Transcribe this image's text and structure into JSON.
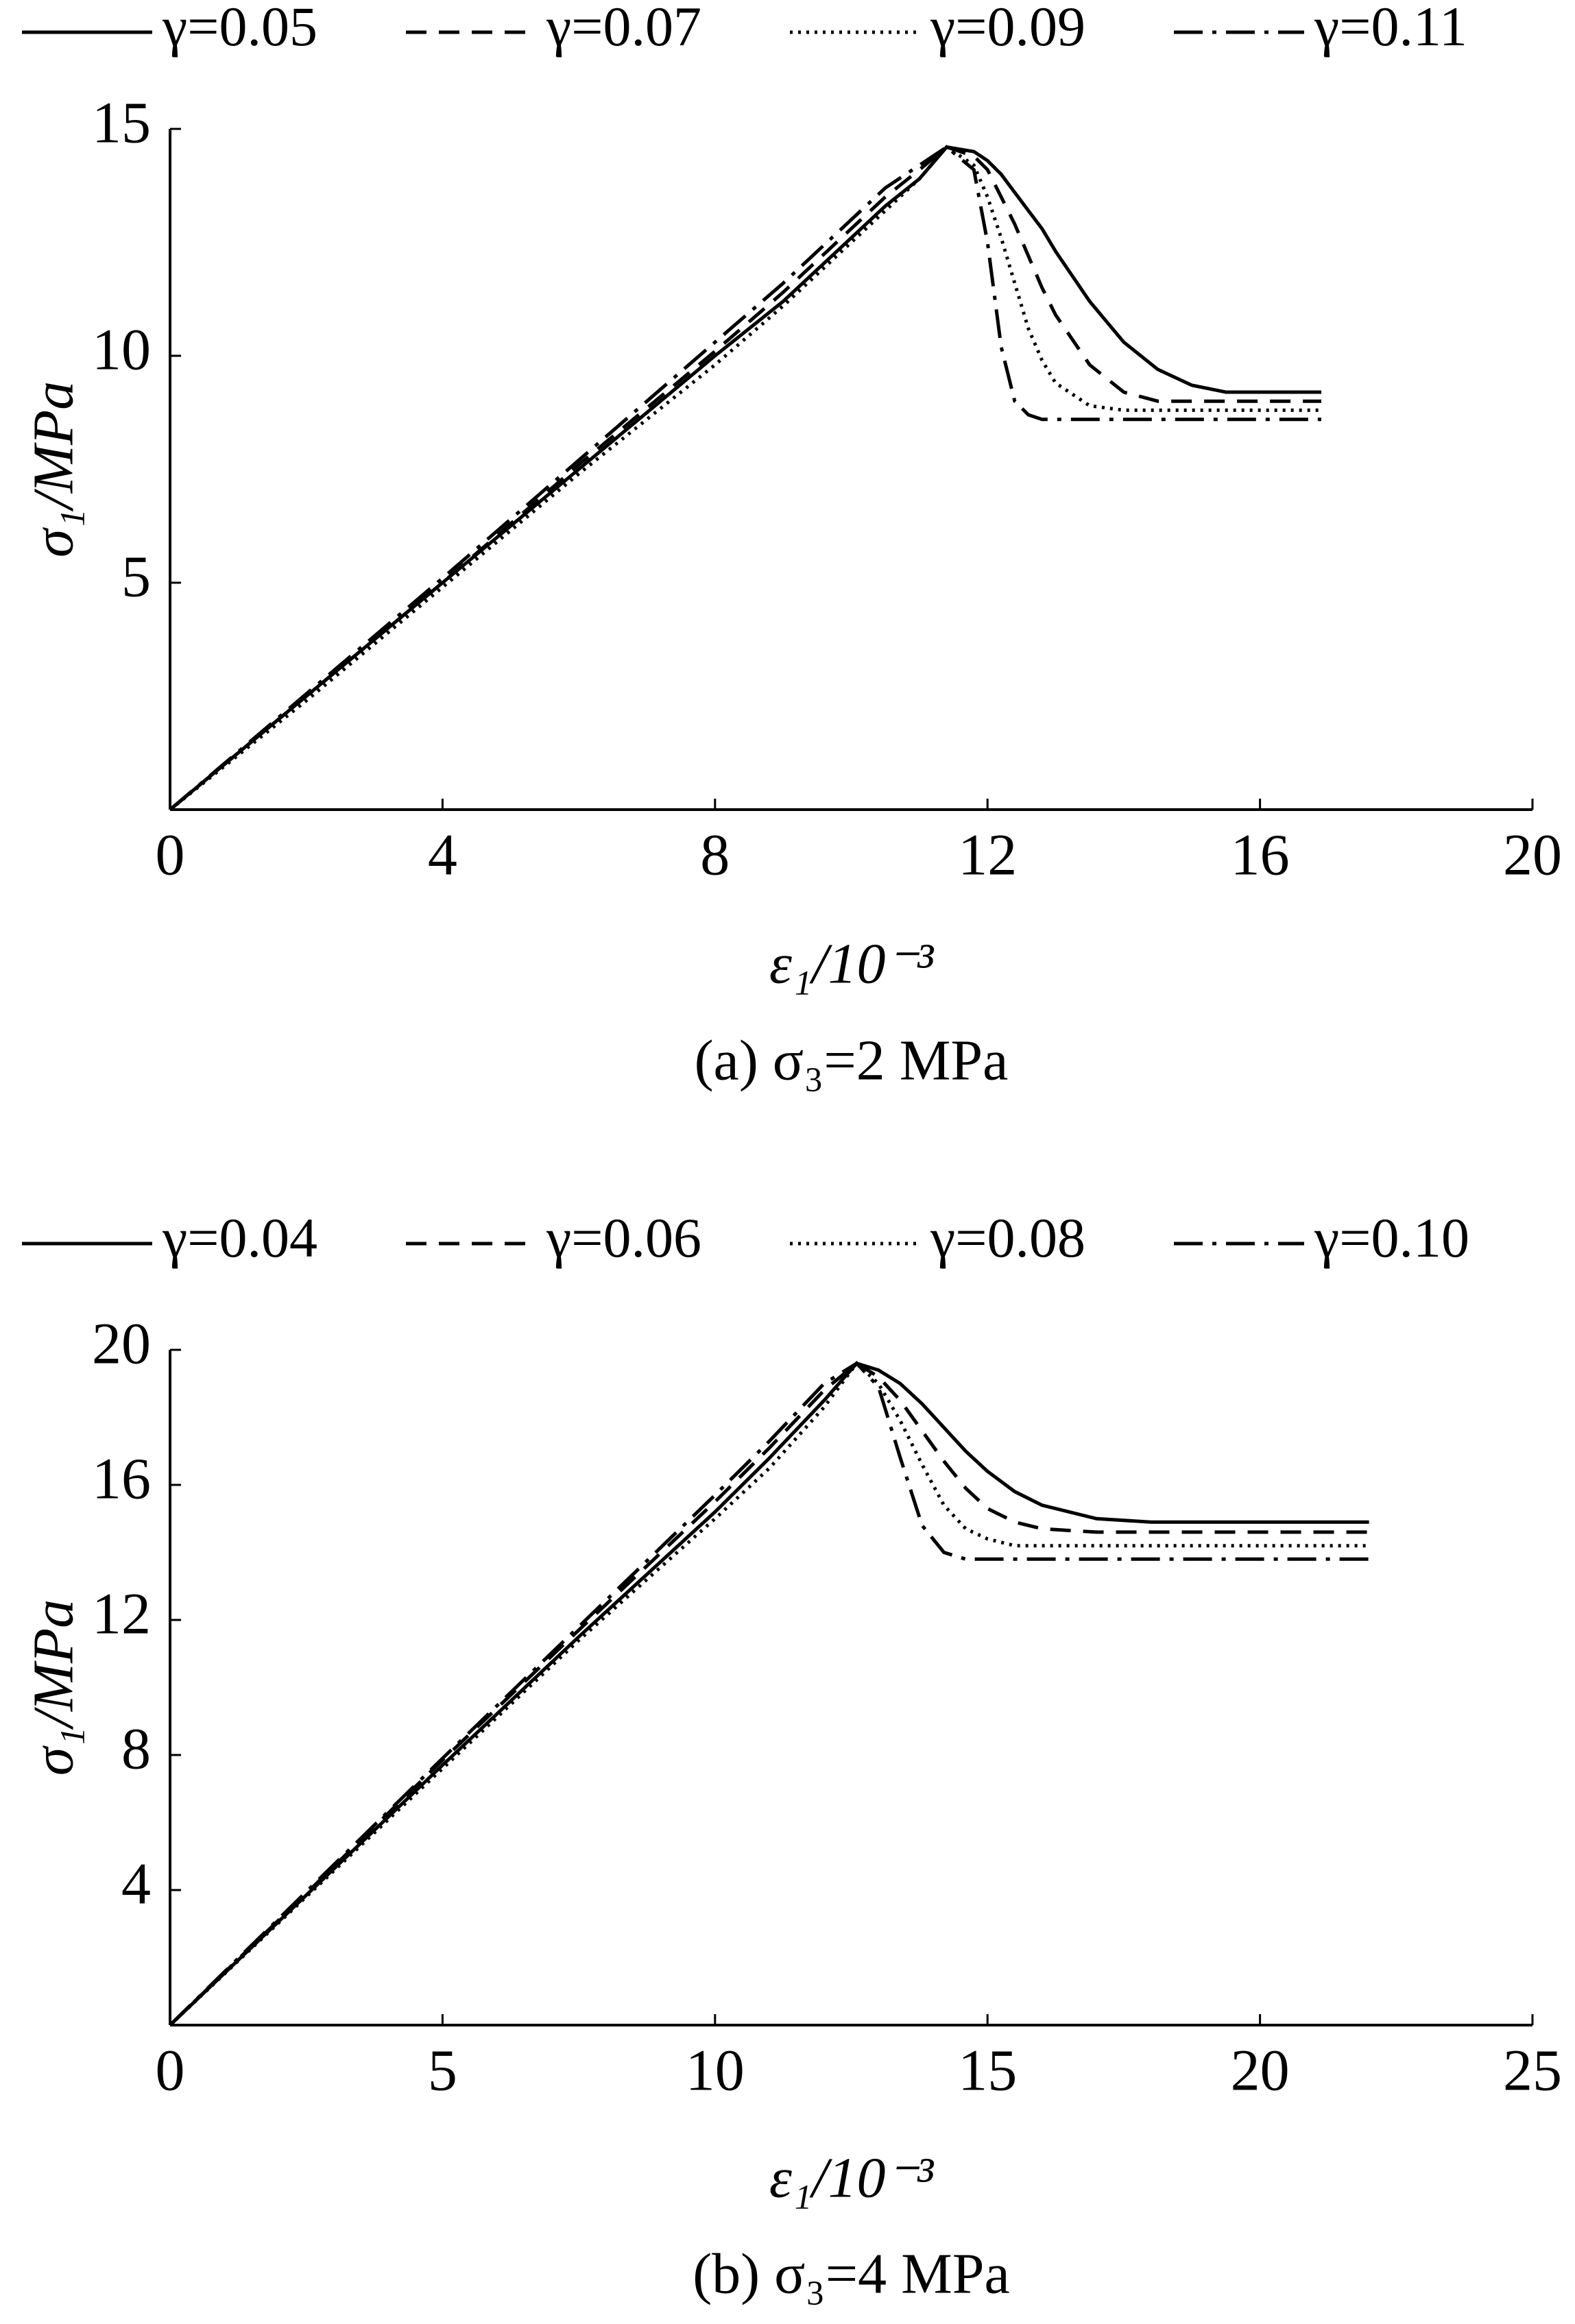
{
  "chart_data": [
    {
      "type": "line",
      "caption": "(a)  σ₃=2 MPa",
      "xlabel": "ε₁/10⁻³",
      "ylabel": "σ₁/MPa",
      "xlim": [
        0,
        20
      ],
      "xticks": [
        0,
        4,
        8,
        12,
        16,
        20
      ],
      "ylim": [
        0,
        15
      ],
      "yticks": [
        5,
        10,
        15
      ],
      "grid": false,
      "x": [
        0,
        2,
        4,
        6,
        8,
        9,
        10,
        10.5,
        11,
        11.4,
        11.8,
        12,
        12.2,
        12.4,
        12.6,
        12.8,
        13,
        13.5,
        14,
        14.5,
        15,
        15.5,
        16,
        16.9
      ],
      "series": [
        {
          "name": "γ=0.05",
          "color": "#000000",
          "dash": "solid",
          "values": [
            0,
            2.5,
            5.0,
            7.5,
            10.0,
            11.2,
            12.6,
            13.3,
            13.9,
            14.6,
            14.5,
            14.3,
            14.0,
            13.6,
            13.2,
            12.8,
            12.3,
            11.2,
            10.3,
            9.7,
            9.35,
            9.2,
            9.2,
            9.2
          ]
        },
        {
          "name": "γ=0.07",
          "color": "#000000",
          "dash": "dashed",
          "values": [
            0,
            2.5,
            5.0,
            7.6,
            10.1,
            11.4,
            12.8,
            13.5,
            14.1,
            14.6,
            14.4,
            14.1,
            13.5,
            12.9,
            12.2,
            11.5,
            10.9,
            9.8,
            9.2,
            9.0,
            9.0,
            9.0,
            9.0,
            9.0
          ]
        },
        {
          "name": "γ=0.09",
          "color": "#000000",
          "dash": "dotted",
          "values": [
            0,
            2.4,
            4.9,
            7.4,
            9.8,
            11.1,
            12.5,
            13.2,
            13.9,
            14.6,
            14.2,
            13.5,
            12.6,
            11.6,
            10.6,
            9.9,
            9.4,
            8.9,
            8.8,
            8.8,
            8.8,
            8.8,
            8.8,
            8.8
          ]
        },
        {
          "name": "γ=0.11",
          "color": "#000000",
          "dash": "dashdot",
          "values": [
            0,
            2.55,
            5.1,
            7.7,
            10.3,
            11.6,
            13.0,
            13.7,
            14.2,
            14.6,
            14.1,
            12.5,
            10.2,
            9.0,
            8.7,
            8.6,
            8.6,
            8.6,
            8.6,
            8.6,
            8.6,
            8.6,
            8.6,
            8.6
          ]
        }
      ]
    },
    {
      "type": "line",
      "caption": "(b)  σ₃=4 MPa",
      "xlabel": "ε₁/10⁻³",
      "ylabel": "σ₁/MPa",
      "xlim": [
        0,
        25
      ],
      "xticks": [
        0,
        5,
        10,
        15,
        20,
        25
      ],
      "ylim": [
        0,
        20
      ],
      "yticks": [
        4,
        8,
        12,
        16,
        20
      ],
      "grid": false,
      "x": [
        0,
        2.5,
        5,
        7.5,
        10,
        11,
        12,
        12.6,
        13,
        13.4,
        13.8,
        14.2,
        14.6,
        15,
        15.5,
        16,
        17,
        18,
        20,
        22
      ],
      "series": [
        {
          "name": "γ=0.04",
          "color": "#000000",
          "dash": "solid",
          "values": [
            0,
            3.85,
            7.7,
            11.5,
            15.2,
            16.8,
            18.5,
            19.6,
            19.4,
            19.0,
            18.4,
            17.7,
            17.0,
            16.4,
            15.8,
            15.4,
            15.0,
            14.9,
            14.9,
            14.9
          ]
        },
        {
          "name": "γ=0.06",
          "color": "#000000",
          "dash": "dashed",
          "values": [
            0,
            3.9,
            7.85,
            11.7,
            15.5,
            17.1,
            18.8,
            19.6,
            19.2,
            18.5,
            17.6,
            16.7,
            15.9,
            15.3,
            14.9,
            14.7,
            14.6,
            14.6,
            14.6,
            14.6
          ]
        },
        {
          "name": "γ=0.08",
          "color": "#000000",
          "dash": "dotted",
          "values": [
            0,
            3.8,
            7.6,
            11.4,
            15.0,
            16.5,
            18.3,
            19.6,
            19.0,
            17.9,
            16.6,
            15.4,
            14.7,
            14.4,
            14.2,
            14.2,
            14.2,
            14.2,
            14.2,
            14.2
          ]
        },
        {
          "name": "γ=0.10",
          "color": "#000000",
          "dash": "dashdot",
          "values": [
            0,
            3.95,
            7.9,
            11.8,
            15.7,
            17.3,
            19.0,
            19.6,
            18.9,
            16.8,
            14.8,
            14.0,
            13.8,
            13.8,
            13.8,
            13.8,
            13.8,
            13.8,
            13.8,
            13.8
          ]
        }
      ]
    }
  ]
}
